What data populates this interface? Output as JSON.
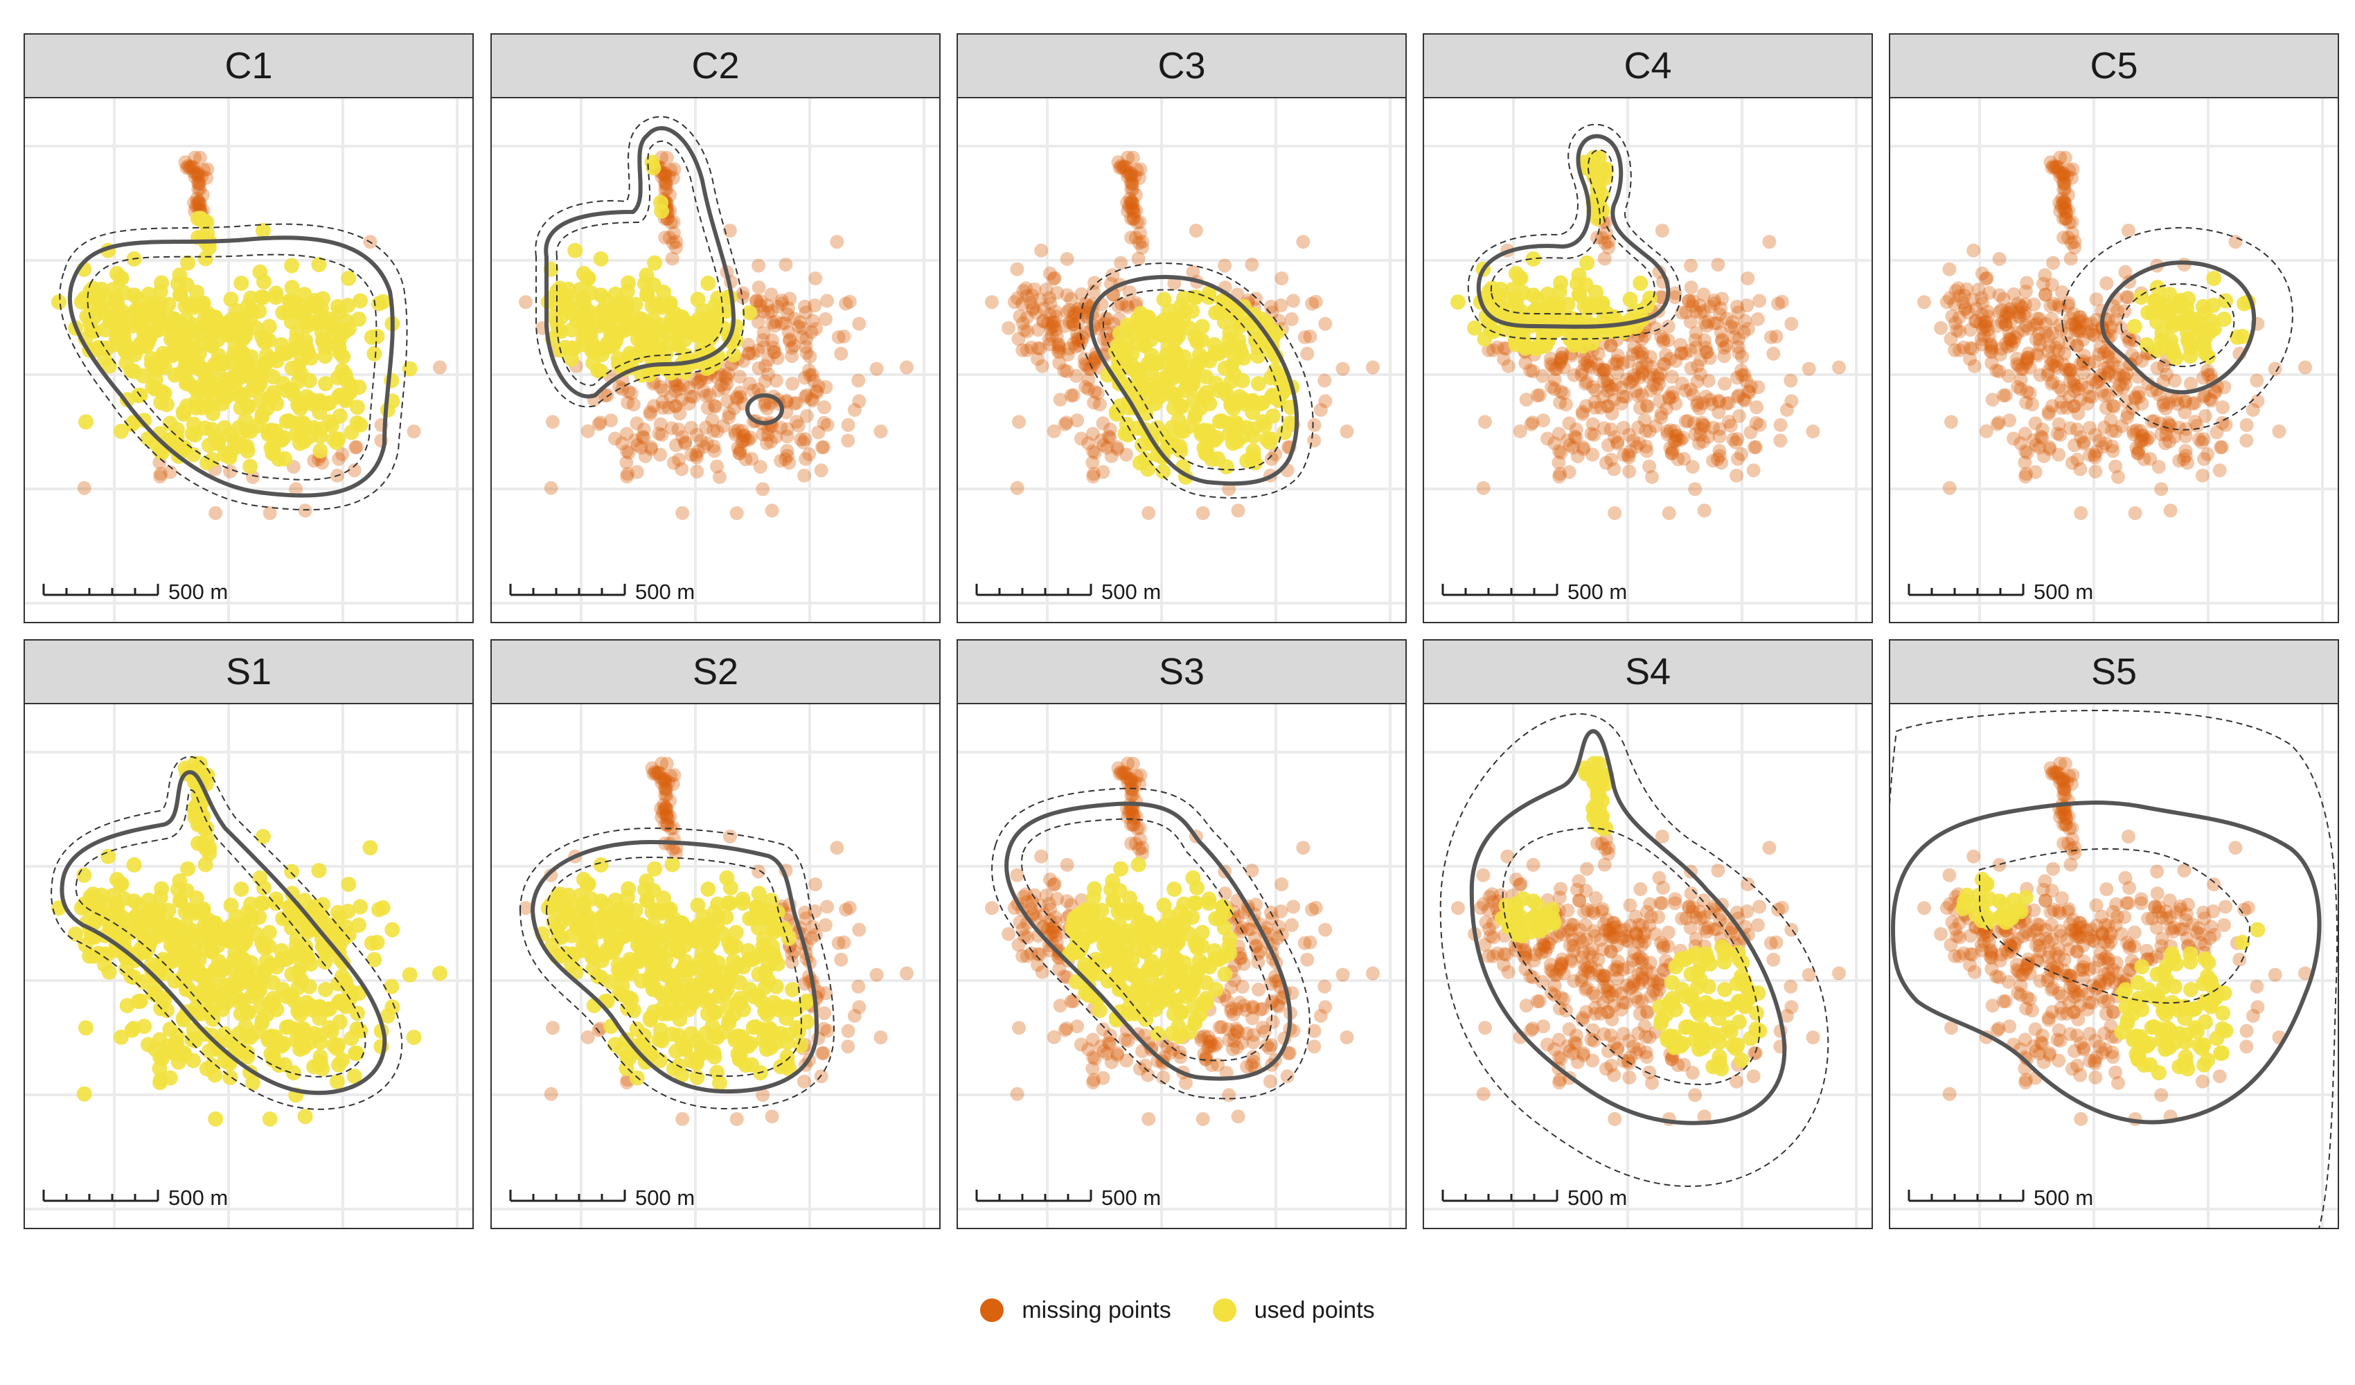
{
  "colors": {
    "missing": "#D9620F",
    "used": "#F2E13F",
    "contour_solid": "#555555",
    "contour_dashed": "#333333",
    "strip_fill": "#D9D9D9",
    "grid": "#EBEBEB"
  },
  "legend": {
    "items": [
      {
        "label": "missing points",
        "color": "#D9620F"
      },
      {
        "label": "used points",
        "color": "#F2E13F"
      }
    ]
  },
  "chart_data": [
    {
      "type": "scatter",
      "panel": "C1",
      "title": "C1",
      "scalebar_label": "500 m",
      "grid": true,
      "series": [
        {
          "name": "missing points"
        },
        {
          "name": "used points"
        }
      ]
    },
    {
      "type": "scatter",
      "panel": "C2",
      "title": "C2",
      "scalebar_label": "500 m",
      "grid": true,
      "series": [
        {
          "name": "missing points"
        },
        {
          "name": "used points"
        }
      ]
    },
    {
      "type": "scatter",
      "panel": "C3",
      "title": "C3",
      "scalebar_label": "500 m",
      "grid": true,
      "series": [
        {
          "name": "missing points"
        },
        {
          "name": "used points"
        }
      ]
    },
    {
      "type": "scatter",
      "panel": "C4",
      "title": "C4",
      "scalebar_label": "500 m",
      "grid": true,
      "series": [
        {
          "name": "missing points"
        },
        {
          "name": "used points"
        }
      ]
    },
    {
      "type": "scatter",
      "panel": "C5",
      "title": "C5",
      "scalebar_label": "500 m",
      "grid": true,
      "series": [
        {
          "name": "missing points"
        },
        {
          "name": "used points"
        }
      ]
    },
    {
      "type": "scatter",
      "panel": "S1",
      "title": "S1",
      "scalebar_label": "500 m",
      "grid": true,
      "series": [
        {
          "name": "missing points"
        },
        {
          "name": "used points"
        }
      ]
    },
    {
      "type": "scatter",
      "panel": "S2",
      "title": "S2",
      "scalebar_label": "500 m",
      "grid": true,
      "series": [
        {
          "name": "missing points"
        },
        {
          "name": "used points"
        }
      ]
    },
    {
      "type": "scatter",
      "panel": "S3",
      "title": "S3",
      "scalebar_label": "500 m",
      "grid": true,
      "series": [
        {
          "name": "missing points"
        },
        {
          "name": "used points"
        }
      ]
    },
    {
      "type": "scatter",
      "panel": "S4",
      "title": "S4",
      "scalebar_label": "500 m",
      "grid": true,
      "series": [
        {
          "name": "missing points"
        },
        {
          "name": "used points"
        }
      ]
    },
    {
      "type": "scatter",
      "panel": "S5",
      "title": "S5",
      "scalebar_label": "500 m",
      "grid": true,
      "series": [
        {
          "name": "missing points"
        },
        {
          "name": "used points"
        }
      ]
    }
  ]
}
